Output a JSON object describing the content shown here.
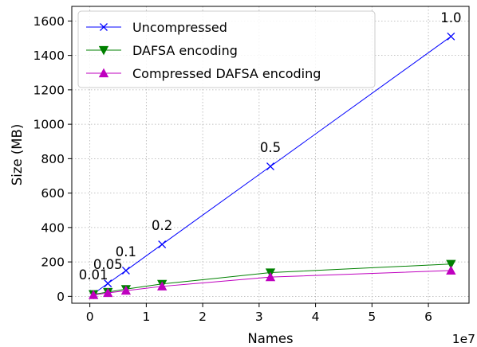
{
  "chart_data": {
    "type": "line",
    "xlabel": "Names",
    "ylabel": "Size (MB)",
    "x_offset_label": "1e7",
    "x_scale": 10000000,
    "xlim": [
      -0.32,
      6.72
    ],
    "ylim": [
      -40,
      1685
    ],
    "x_ticks": [
      0,
      1,
      2,
      3,
      4,
      5,
      6
    ],
    "y_ticks": [
      0,
      200,
      400,
      600,
      800,
      1000,
      1200,
      1400,
      1600
    ],
    "grid": true,
    "legend_position": "upper-left",
    "x": [
      640000,
      3200000,
      6400000,
      12800000,
      32000000,
      64000000
    ],
    "series": [
      {
        "name": "Uncompressed",
        "color": "#0000ff",
        "marker": "x",
        "values": [
          15,
          75,
          150,
          302,
          755,
          1510
        ]
      },
      {
        "name": "DAFSA encoding",
        "color": "#008000",
        "marker": "triangle-down",
        "values": [
          12,
          25,
          42,
          72,
          138,
          188
        ]
      },
      {
        "name": "Compressed DAFSA encoding",
        "color": "#bf00bf",
        "marker": "triangle-up",
        "values": [
          8,
          20,
          33,
          58,
          112,
          150
        ]
      }
    ],
    "annotations": [
      {
        "text": "0.01",
        "x": 640000,
        "y": 15
      },
      {
        "text": "0.05",
        "x": 3200000,
        "y": 75
      },
      {
        "text": "0.1",
        "x": 6400000,
        "y": 150
      },
      {
        "text": "0.2",
        "x": 12800000,
        "y": 302
      },
      {
        "text": "0.5",
        "x": 32000000,
        "y": 755
      },
      {
        "text": "1.0",
        "x": 64000000,
        "y": 1510
      }
    ]
  }
}
